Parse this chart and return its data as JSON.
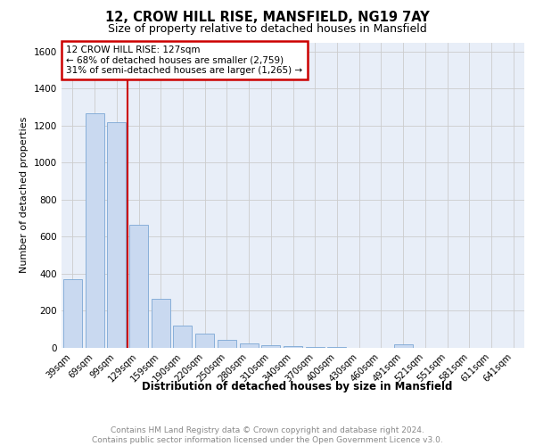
{
  "title1": "12, CROW HILL RISE, MANSFIELD, NG19 7AY",
  "title2": "Size of property relative to detached houses in Mansfield",
  "xlabel": "Distribution of detached houses by size in Mansfield",
  "ylabel": "Number of detached properties",
  "categories": [
    "39sqm",
    "69sqm",
    "99sqm",
    "129sqm",
    "159sqm",
    "190sqm",
    "220sqm",
    "250sqm",
    "280sqm",
    "310sqm",
    "340sqm",
    "370sqm",
    "400sqm",
    "430sqm",
    "460sqm",
    "491sqm",
    "521sqm",
    "551sqm",
    "581sqm",
    "611sqm",
    "641sqm"
  ],
  "values": [
    370,
    1265,
    1220,
    665,
    265,
    120,
    75,
    45,
    25,
    15,
    8,
    5,
    5,
    0,
    0,
    20,
    0,
    0,
    0,
    0,
    0
  ],
  "bar_color": "#c9d9f0",
  "bar_edge_color": "#7ba7d4",
  "annotation_line1": "12 CROW HILL RISE: 127sqm",
  "annotation_line2": "← 68% of detached houses are smaller (2,759)",
  "annotation_line3": "31% of semi-detached houses are larger (1,265) →",
  "annotation_box_color": "#ffffff",
  "annotation_box_edge": "#cc0000",
  "line_color": "#cc0000",
  "red_line_x": 2.5,
  "ylim": [
    0,
    1650
  ],
  "yticks": [
    0,
    200,
    400,
    600,
    800,
    1000,
    1200,
    1400,
    1600
  ],
  "footer": "Contains HM Land Registry data © Crown copyright and database right 2024.\nContains public sector information licensed under the Open Government Licence v3.0.",
  "grid_color": "#cccccc",
  "bg_color": "#e8eef8"
}
